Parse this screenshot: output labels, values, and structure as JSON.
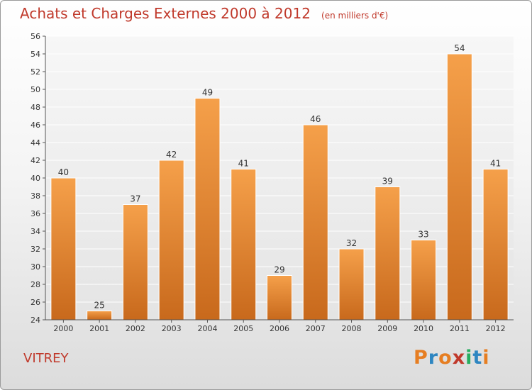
{
  "header": {
    "title": "Achats et Charges Externes 2000 à 2012",
    "unit": "(en milliers d'€)"
  },
  "footer": {
    "town": "VITREY",
    "logo_text": "Proxiti",
    "logo_colors": [
      "#e67e22",
      "#2e86c1",
      "#e67e22",
      "#c0392b",
      "#27ae60",
      "#2e86c1",
      "#e67e22"
    ]
  },
  "chart_data": {
    "type": "bar",
    "title": "Achats et Charges Externes 2000 à 2012",
    "subtitle": "(en milliers d'€)",
    "categories": [
      "2000",
      "2001",
      "2002",
      "2003",
      "2004",
      "2005",
      "2006",
      "2007",
      "2008",
      "2009",
      "2010",
      "2011",
      "2012"
    ],
    "values": [
      40,
      25,
      37,
      42,
      49,
      41,
      29,
      46,
      32,
      39,
      33,
      54,
      41
    ],
    "ylim": [
      24,
      56
    ],
    "yticks": [
      24,
      26,
      28,
      30,
      32,
      34,
      36,
      38,
      40,
      42,
      44,
      46,
      48,
      50,
      52,
      54,
      56
    ],
    "grid": true,
    "bar_color_top": "#f5a04a",
    "bar_color_bottom": "#c8691c",
    "data_labels": true
  }
}
